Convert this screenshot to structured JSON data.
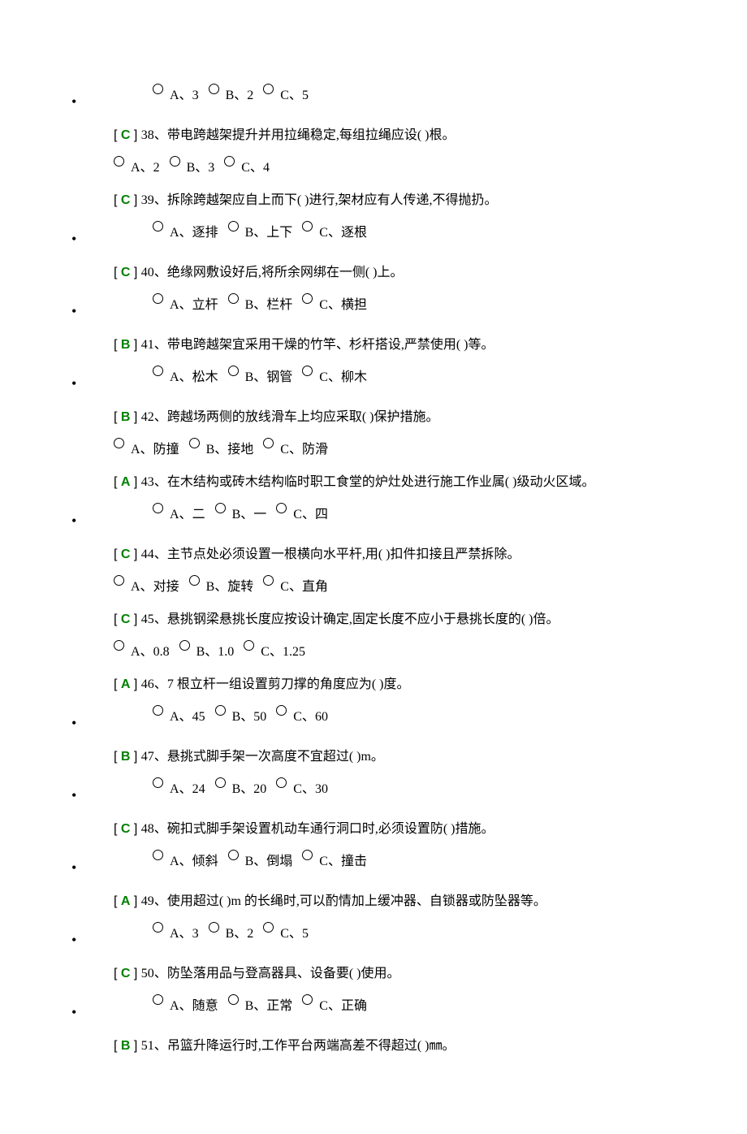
{
  "questions": [
    {
      "answer": "",
      "num": "",
      "text": "",
      "options": [
        {
          "label": "A、",
          "val": "3"
        },
        {
          "label": "B、",
          "val": "2"
        },
        {
          "label": "C、",
          "val": "5"
        }
      ],
      "bullet": true,
      "indent": true,
      "opts_only": true
    },
    {
      "answer": "C",
      "num": "38、",
      "text": "带电跨越架提升并用拉绳稳定,每组拉绳应设(    )根。",
      "options": [
        {
          "label": "A、",
          "val": "2"
        },
        {
          "label": "B、",
          "val": "3"
        },
        {
          "label": "C、",
          "val": "4"
        }
      ],
      "bullet": false,
      "indent": false
    },
    {
      "answer": "C",
      "num": "39、",
      "text": "拆除跨越架应自上而下(    )进行,架材应有人传递,不得抛扔。",
      "options": [
        {
          "label": "A、",
          "val": "逐排"
        },
        {
          "label": "B、",
          "val": "上下"
        },
        {
          "label": "C、",
          "val": "逐根"
        }
      ],
      "bullet": true,
      "indent": true
    },
    {
      "answer": "C",
      "num": "40、",
      "text": "绝缘网敷设好后,将所余网绑在一侧(    )上。",
      "options": [
        {
          "label": "A、",
          "val": "立杆"
        },
        {
          "label": "B、",
          "val": "栏杆"
        },
        {
          "label": "C、",
          "val": "横担"
        }
      ],
      "bullet": true,
      "indent": true
    },
    {
      "answer": "B",
      "num": "41、",
      "text": "带电跨越架宜采用干燥的竹竿、杉杆搭设,严禁使用(    )等。",
      "options": [
        {
          "label": "A、",
          "val": "松木"
        },
        {
          "label": "B、",
          "val": "钢管"
        },
        {
          "label": "C、",
          "val": "柳木"
        }
      ],
      "bullet": true,
      "indent": true
    },
    {
      "answer": "B",
      "num": "42、",
      "text": "跨越场两侧的放线滑车上均应采取(    )保护措施。",
      "options": [
        {
          "label": "A、",
          "val": "防撞"
        },
        {
          "label": "B、",
          "val": "接地"
        },
        {
          "label": "C、",
          "val": "防滑"
        }
      ],
      "bullet": false,
      "indent": false
    },
    {
      "answer": "A",
      "num": "43、",
      "text": "在木结构或砖木结构临时职工食堂的炉灶处进行施工作业属(    )级动火区域。",
      "options": [
        {
          "label": "A、",
          "val": "二"
        },
        {
          "label": "B、",
          "val": "一"
        },
        {
          "label": "C、",
          "val": "四"
        }
      ],
      "bullet": true,
      "indent": true
    },
    {
      "answer": "C",
      "num": "44、",
      "text": "主节点处必须设置一根横向水平杆,用(    )扣件扣接且严禁拆除。",
      "options": [
        {
          "label": "A、",
          "val": "对接"
        },
        {
          "label": "B、",
          "val": "旋转"
        },
        {
          "label": "C、",
          "val": "直角"
        }
      ],
      "bullet": false,
      "indent": false
    },
    {
      "answer": "C",
      "num": "45、",
      "text": "悬挑钢梁悬挑长度应按设计确定,固定长度不应小于悬挑长度的(    )倍。",
      "options": [
        {
          "label": "A、",
          "val": "0.8"
        },
        {
          "label": "B、",
          "val": "1.0"
        },
        {
          "label": "C、",
          "val": "1.25"
        }
      ],
      "bullet": false,
      "indent": false
    },
    {
      "answer": "A",
      "num": "46、",
      "text": "7 根立杆一组设置剪刀撑的角度应为(    )度。",
      "options": [
        {
          "label": "A、",
          "val": "45"
        },
        {
          "label": "B、",
          "val": "50"
        },
        {
          "label": "C、",
          "val": "60"
        }
      ],
      "bullet": true,
      "indent": true
    },
    {
      "answer": "B",
      "num": "47、",
      "text": "悬挑式脚手架一次高度不宜超过(    )m。",
      "options": [
        {
          "label": "A、",
          "val": "24"
        },
        {
          "label": "B、",
          "val": "20"
        },
        {
          "label": "C、",
          "val": "30"
        }
      ],
      "bullet": true,
      "indent": true
    },
    {
      "answer": "C",
      "num": "48、",
      "text": "碗扣式脚手架设置机动车通行洞口时,必须设置防(    )措施。",
      "options": [
        {
          "label": "A、",
          "val": "倾斜"
        },
        {
          "label": "B、",
          "val": "倒塌"
        },
        {
          "label": "C、",
          "val": "撞击"
        }
      ],
      "bullet": true,
      "indent": true
    },
    {
      "answer": "A",
      "num": "49、",
      "text": "使用超过(    )m 的长绳时,可以酌情加上缓冲器、自锁器或防坠器等。",
      "options": [
        {
          "label": "A、",
          "val": "3"
        },
        {
          "label": "B、",
          "val": "2"
        },
        {
          "label": "C、",
          "val": "5"
        }
      ],
      "bullet": true,
      "indent": true
    },
    {
      "answer": "C",
      "num": "50、",
      "text": "防坠落用品与登高器具、设备要(    )使用。",
      "options": [
        {
          "label": "A、",
          "val": "随意"
        },
        {
          "label": "B、",
          "val": "正常"
        },
        {
          "label": "C、",
          "val": "正确"
        }
      ],
      "bullet": true,
      "indent": true
    },
    {
      "answer": "B",
      "num": "51、",
      "text": "吊篮升降运行时,工作平台两端高差不得超过(    )㎜。",
      "options": [],
      "bullet": false,
      "indent": false,
      "no_opts": true
    }
  ]
}
